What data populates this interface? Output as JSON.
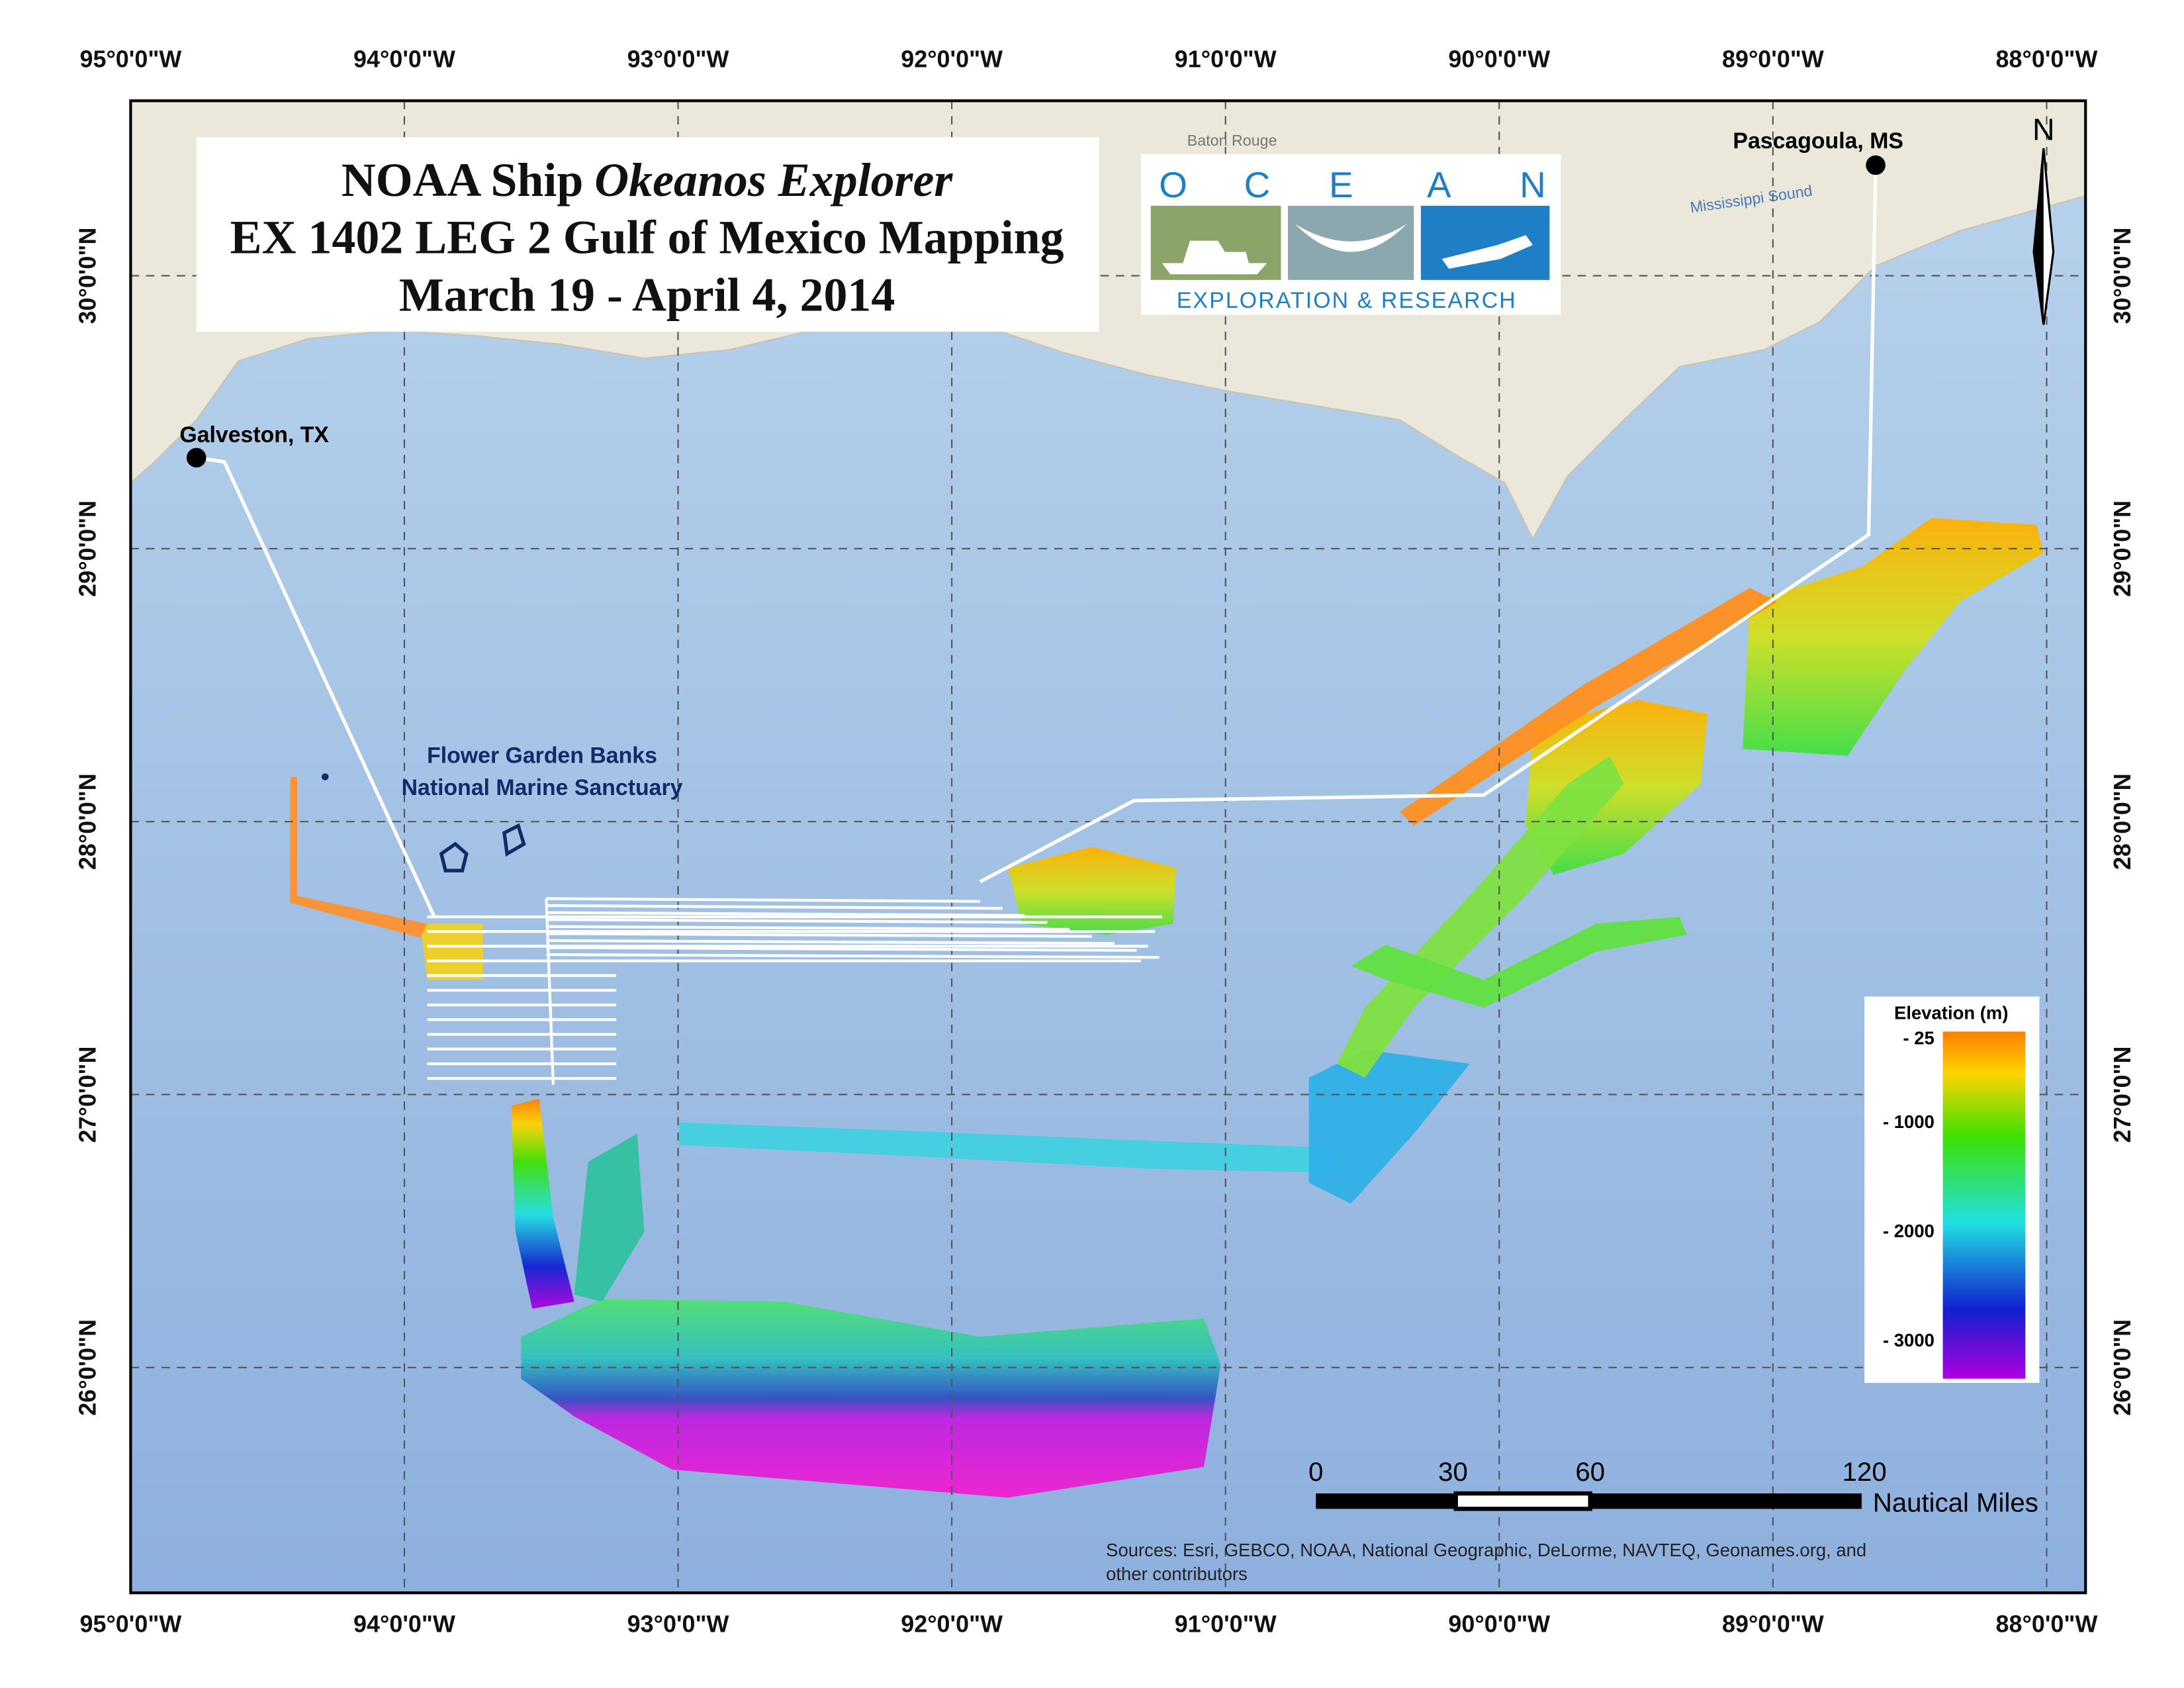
{
  "header": {
    "title_prefix": "NOAA Ship",
    "title_italic": "Okeanos Explorer",
    "title_line2": "EX 1402 LEG 2 Gulf of Mexico Mapping",
    "title_line3": "March 19 - April 4, 2014"
  },
  "graticule": {
    "longitudes": [
      "95°0'0\"W",
      "94°0'0\"W",
      "93°0'0\"W",
      "92°0'0\"W",
      "91°0'0\"W",
      "90°0'0\"W",
      "89°0'0\"W",
      "88°0'0\"W"
    ],
    "latitudes": [
      "26°0'0\"N",
      "27°0'0\"N",
      "28°0'0\"N",
      "29°0'0\"N",
      "30°0'0\"N"
    ]
  },
  "places": {
    "galveston": "Galveston, TX",
    "pascagoula": "Pascagoula, MS",
    "baton_rouge": "Baton Rouge",
    "mississippi_sound": "Mississippi Sound"
  },
  "sanctuary": {
    "line1": "Flower Garden Banks",
    "line2": "National Marine Sanctuary"
  },
  "logo": {
    "letters": [
      "O",
      "C",
      "E",
      "A",
      "N"
    ],
    "tagline": "EXPLORATION & RESEARCH"
  },
  "north": "N",
  "legend": {
    "title": "Elevation (m)",
    "labels": [
      "- 25",
      "- 1000",
      "- 2000",
      "- 3000"
    ]
  },
  "scale_bar": {
    "labels": [
      "0",
      "30",
      "60",
      "120"
    ],
    "unit": "Nautical Miles"
  },
  "sources": {
    "line1": "Sources: Esri, GEBCO, NOAA, National Geographic, DeLorme, NAVTEQ, Geonames.org, and",
    "line2": "other contributors"
  }
}
